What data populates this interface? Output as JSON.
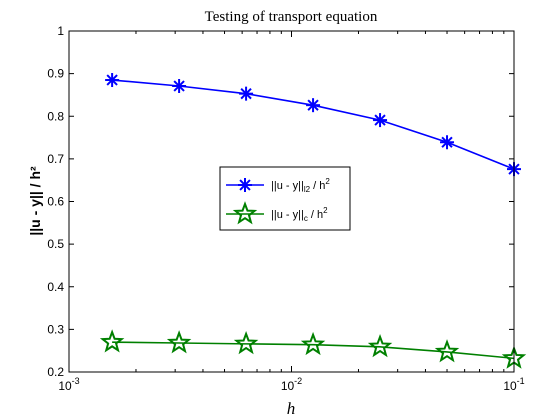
{
  "chart_data": {
    "type": "line",
    "title": "Testing of transport equation",
    "xlabel": "h",
    "ylabel": "||u - y|| / h²",
    "x_scale": "log",
    "xlim": [
      0.001,
      0.1
    ],
    "ylim": [
      0.2,
      1.0
    ],
    "x_ticks": [
      {
        "value": 0.001,
        "base": "10",
        "exp": "-3"
      },
      {
        "value": 0.01,
        "base": "10",
        "exp": "-2"
      },
      {
        "value": 0.1,
        "base": "10",
        "exp": "-1"
      }
    ],
    "y_ticks": [
      {
        "value": 0.2,
        "label": "0.2"
      },
      {
        "value": 0.3,
        "label": "0.3"
      },
      {
        "value": 0.4,
        "label": "0.4"
      },
      {
        "value": 0.5,
        "label": "0.5"
      },
      {
        "value": 0.6,
        "label": "0.6"
      },
      {
        "value": 0.7,
        "label": "0.7"
      },
      {
        "value": 0.8,
        "label": "0.8"
      },
      {
        "value": 0.9,
        "label": "0.9"
      },
      {
        "value": 1.0,
        "label": "1"
      }
    ],
    "grid": false,
    "legend_position": "center",
    "x": [
      0.0015625,
      0.003125,
      0.00625,
      0.0125,
      0.025,
      0.05,
      0.1
    ],
    "series": [
      {
        "name": "||u - y||l2 / h2",
        "legend": {
          "norm": "||u - y||",
          "sub": "l2",
          "div": " / h",
          "sup": "2"
        },
        "values": [
          0.885,
          0.871,
          0.853,
          0.826,
          0.791,
          0.739,
          0.676
        ],
        "color": "#0000ff",
        "marker": "asterisk"
      },
      {
        "name": "||u - y||c / h2",
        "legend": {
          "norm": "||u - y||",
          "sub": "c",
          "div": " / h",
          "sup": "2"
        },
        "values": [
          0.27,
          0.268,
          0.266,
          0.264,
          0.259,
          0.247,
          0.232
        ],
        "color": "#008000",
        "marker": "pentagram"
      }
    ]
  }
}
